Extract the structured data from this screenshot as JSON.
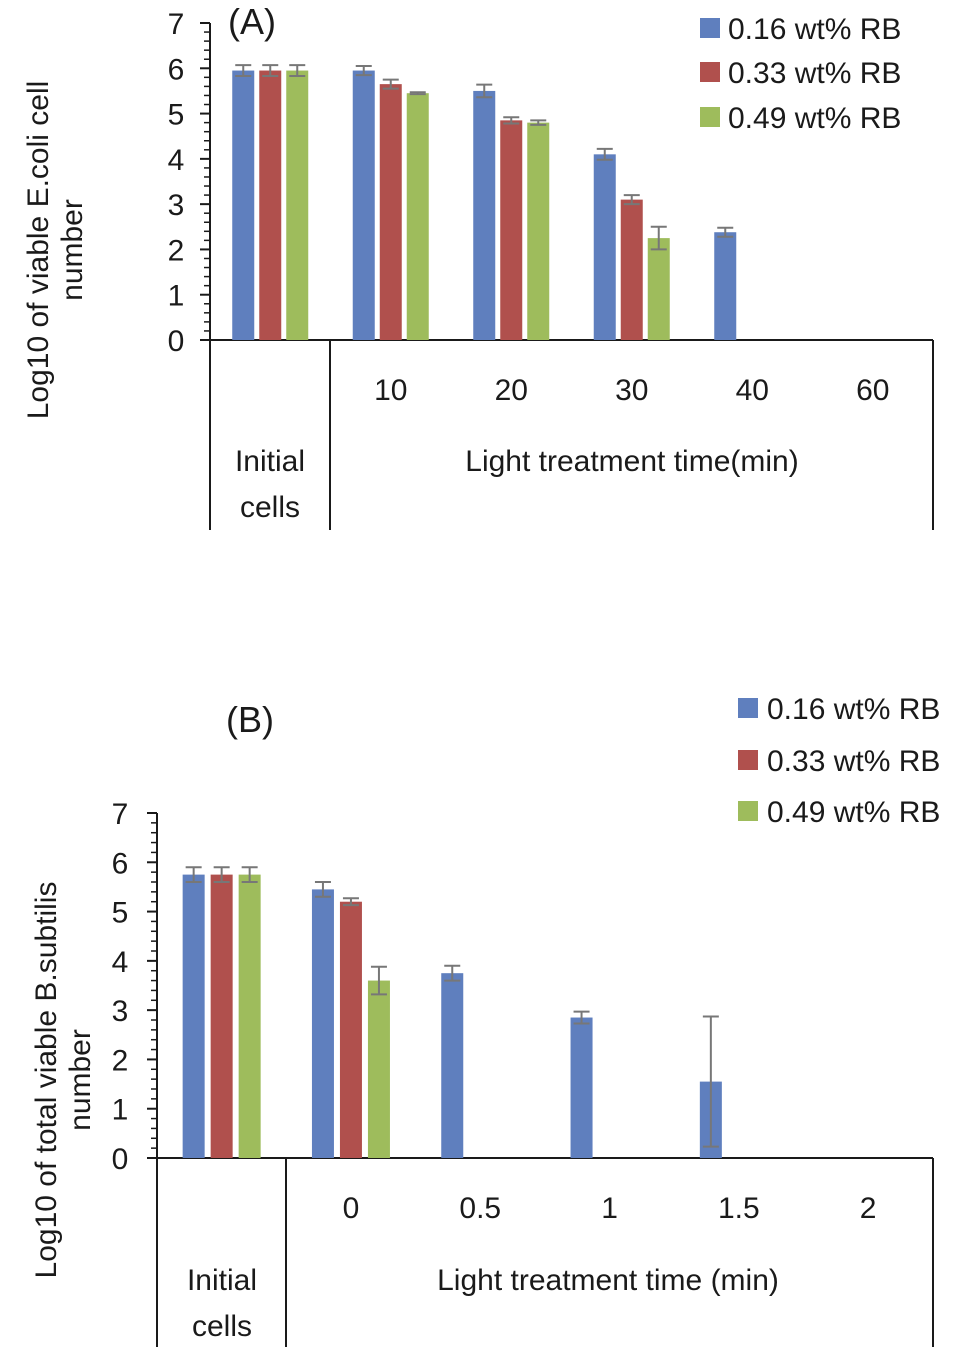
{
  "colors": {
    "series": [
      "#5f7fbe",
      "#b0504d",
      "#9ebc5c"
    ],
    "error_bar": "#777777",
    "axis": "#1a1a1a"
  },
  "chart_data": [
    {
      "type": "bar",
      "panel_label": "(A)",
      "ylabel": "Log10 of  viable E.coli cell number",
      "ylabel_lines": [
        "Log10 of  viable E.coli cell",
        "number"
      ],
      "ylim": [
        0,
        7
      ],
      "yticks": [
        "0",
        "1",
        "2",
        "3",
        "4",
        "5",
        "6",
        "7"
      ],
      "grid": false,
      "legend": "top-right",
      "first_group_label": [
        "Initial",
        "cells"
      ],
      "xlabel": "Light treatment time(min)",
      "categories": [
        "Initial cells",
        "10",
        "20",
        "30",
        "40",
        "60"
      ],
      "category_labels": [
        "",
        "10",
        "20",
        "30",
        "40",
        "60"
      ],
      "series": [
        {
          "name": "0.16 wt% RB",
          "values": [
            5.95,
            5.95,
            5.5,
            4.1,
            2.38,
            0
          ],
          "errors": [
            0.12,
            0.1,
            0.14,
            0.12,
            0.1,
            0
          ]
        },
        {
          "name": "0.33 wt% RB",
          "values": [
            5.95,
            5.65,
            4.85,
            3.1,
            0,
            0
          ],
          "errors": [
            0.12,
            0.1,
            0.07,
            0.1,
            0,
            0
          ]
        },
        {
          "name": "0.49 wt% RB",
          "values": [
            5.95,
            5.45,
            4.8,
            2.25,
            0,
            0
          ],
          "errors": [
            0.12,
            0.02,
            0.05,
            0.25,
            0,
            0
          ]
        }
      ]
    },
    {
      "type": "bar",
      "panel_label": "(B)",
      "ylabel": "Log10 of total viable  B.subtilis number",
      "ylabel_lines": [
        "Log10 of total viable  B.subtilis",
        "number"
      ],
      "ylim": [
        0,
        7
      ],
      "yticks": [
        "0",
        "1",
        "2",
        "3",
        "4",
        "5",
        "6",
        "7"
      ],
      "grid": false,
      "legend": "top-right",
      "first_group_label": [
        "Initial",
        "cells"
      ],
      "xlabel": "Light treatment time (min)",
      "categories": [
        "Initial cells",
        "0",
        "0.5",
        "1",
        "1.5",
        "2"
      ],
      "category_labels": [
        "",
        "0",
        "0.5",
        "1",
        "1.5",
        "2"
      ],
      "series": [
        {
          "name": "0.16 wt% RB",
          "values": [
            5.75,
            5.45,
            3.75,
            2.85,
            1.55,
            0
          ],
          "errors": [
            0.15,
            0.15,
            0.15,
            0.12,
            1.32,
            0
          ]
        },
        {
          "name": "0.33 wt% RB",
          "values": [
            5.75,
            5.2,
            0,
            0,
            0,
            0
          ],
          "errors": [
            0.15,
            0.07,
            0,
            0,
            0,
            0
          ]
        },
        {
          "name": "0.49 wt% RB",
          "values": [
            5.75,
            3.6,
            0,
            0,
            0,
            0
          ],
          "errors": [
            0.15,
            0.28,
            0,
            0,
            0,
            0
          ]
        }
      ]
    }
  ]
}
